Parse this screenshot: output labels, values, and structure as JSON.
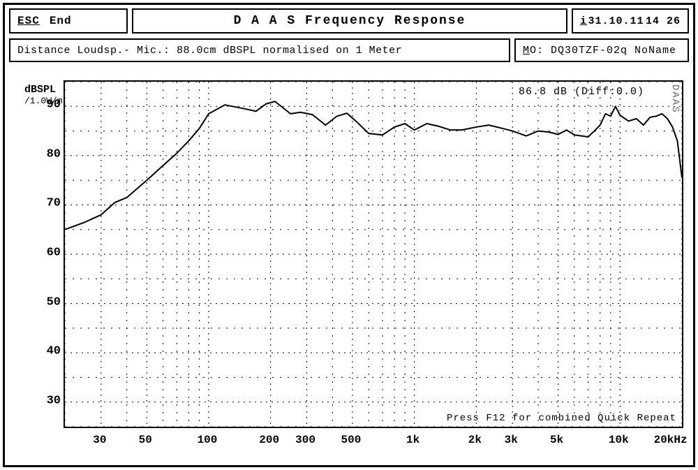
{
  "header": {
    "esc_key": "ESC",
    "esc_label": "End",
    "title": "D A A S   Frequency Response",
    "info_key": "i",
    "date": "31.10.11",
    "time": "14 26"
  },
  "subheader": {
    "info": "Distance Loudsp.- Mic.: 88.0cm dBSPL normalised on 1 Meter",
    "mo_key": "M",
    "mo_rest": "O: DQ30TZF-02q NoName"
  },
  "chart": {
    "type": "line",
    "y_axis": {
      "label_top": "dBSPL",
      "label_sub": "/1.0W/m",
      "ticks": [
        30,
        40,
        50,
        60,
        70,
        80,
        90
      ],
      "minor_step": 5,
      "ylim": [
        25,
        95
      ],
      "label_fontsize": 17
    },
    "x_axis": {
      "scale": "log",
      "xlim": [
        20,
        20000
      ],
      "major_ticks": [
        30,
        50,
        100,
        200,
        300,
        500,
        1000,
        2000,
        3000,
        5000,
        10000,
        20000
      ],
      "major_labels": [
        "30",
        "50",
        "100",
        "200",
        "300",
        "500",
        "1k",
        "2k",
        "3k",
        "5k",
        "10k",
        "20kHz"
      ],
      "label_fontsize": 16
    },
    "grid": {
      "major_color": "#000000",
      "minor_color": "#000000",
      "major_dash": "2 6",
      "minor_dash": "2 9",
      "line_width": 1
    },
    "background_color": "#ffffff",
    "line_color": "#000000",
    "line_width": 2,
    "annotation": "86.8 dB (Diff:0.0)",
    "watermark": "DAAS",
    "footer_hint": "Press F12 for combined Quick Repeat",
    "data": {
      "frequency_hz": [
        20,
        25,
        30,
        35,
        40,
        50,
        60,
        70,
        80,
        90,
        100,
        120,
        150,
        170,
        190,
        210,
        250,
        280,
        320,
        370,
        420,
        470,
        520,
        600,
        700,
        800,
        900,
        1000,
        1150,
        1300,
        1500,
        1700,
        2000,
        2300,
        2700,
        3000,
        3500,
        4000,
        4500,
        5000,
        5500,
        6000,
        6500,
        7000,
        7500,
        8000,
        8500,
        9000,
        9500,
        10000,
        11000,
        12000,
        13000,
        14000,
        15000,
        16000,
        17000,
        18000,
        19000,
        20000
      ],
      "spl_db": [
        65,
        66.5,
        68,
        70.5,
        71.5,
        75,
        78,
        80.5,
        83,
        85.5,
        88.5,
        90.3,
        89.5,
        89.0,
        90.5,
        91.0,
        88.5,
        88.8,
        88.3,
        86.2,
        88.0,
        88.6,
        87.0,
        84.5,
        84.2,
        85.8,
        86.5,
        85.2,
        86.5,
        86.0,
        85.2,
        85.2,
        85.8,
        86.2,
        85.5,
        85.0,
        84.0,
        85.0,
        84.8,
        84.3,
        85.2,
        84.2,
        84.0,
        83.8,
        85.0,
        86.2,
        88.5,
        88.0,
        90.0,
        88.2,
        87.0,
        87.5,
        86.2,
        87.8,
        88.0,
        88.5,
        87.5,
        85.8,
        83.0,
        75.5
      ]
    }
  }
}
